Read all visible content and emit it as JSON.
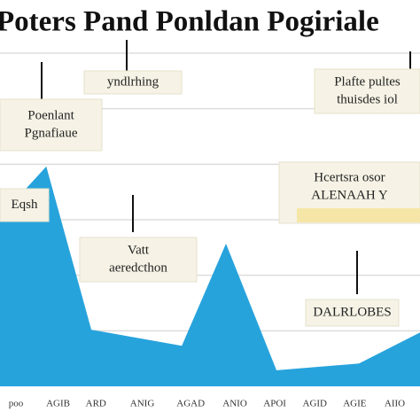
{
  "chart_data": {
    "type": "area",
    "title": "Poters Pand Ponldan Pogiriale",
    "x": [
      -0.38,
      0.72,
      1.79,
      3.94,
      4.99,
      6.19,
      8.15,
      9.6
    ],
    "values": [
      3.05,
      3.96,
      1.02,
      0.73,
      2.57,
      0.29,
      0.41,
      0.97
    ],
    "color": "#27a3dc",
    "xlim": [
      -0.38,
      9.6
    ],
    "xticks": [
      {
        "value": 0,
        "label": "poo"
      },
      {
        "value": 1,
        "label": "AGIB"
      },
      {
        "value": 1.9,
        "label": "ARD"
      },
      {
        "value": 3,
        "label": "ANIG"
      },
      {
        "value": 4.15,
        "label": "AGAD"
      },
      {
        "value": 5.2,
        "label": "ANIO"
      },
      {
        "value": 6.15,
        "label": "APOI"
      },
      {
        "value": 7.1,
        "label": "AGID"
      },
      {
        "value": 8.05,
        "label": "AGIE"
      },
      {
        "value": 9,
        "label": "AIIO"
      }
    ],
    "ylim": [
      0,
      6
    ],
    "yticks": [
      1,
      2,
      3,
      4,
      5,
      6
    ],
    "grid": true,
    "annotations": [
      {
        "lines": [
          "yndlrhing"
        ]
      },
      {
        "lines": [
          "Poenlant",
          "Pgnafiaue"
        ]
      },
      {
        "lines": [
          "Plafte pultes",
          "thuisdes iol"
        ]
      },
      {
        "lines": [
          "Hcertsra osor",
          "ALENAAH Y"
        ]
      },
      {
        "lines": [
          "Eqsh"
        ]
      },
      {
        "lines": [
          "Vatt",
          "aeredcthon"
        ]
      },
      {
        "lines": [
          "DALRLOBES"
        ]
      }
    ]
  }
}
